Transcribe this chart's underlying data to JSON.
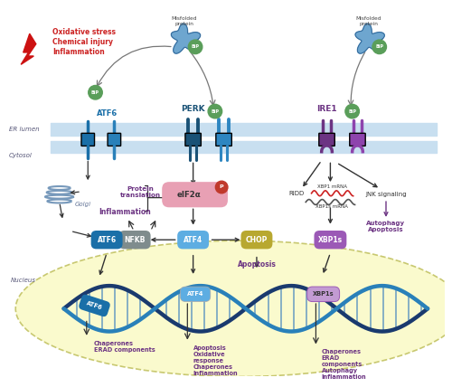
{
  "background_color": "#ffffff",
  "er_membrane_color": "#b8d4e8",
  "cytosol_label": "Cytosol",
  "er_lumen_label": "ER lumen",
  "nucleus_label": "Nucleus",
  "nucleus_color": "#fafacd",
  "nucleus_border": "#c8c870",
  "stress_text": [
    "Oxidative stress",
    "Chemical injury",
    "Inflammation"
  ],
  "stress_color": "#cc2222",
  "perk_label": "PERK",
  "ire1_label": "IRE1",
  "atf6_label": "ATF6",
  "bip_color": "#5a9e5a",
  "perk_color": "#1a5276",
  "ire1_color": "#6c3483",
  "atf6_color": "#1a6fa8",
  "eif2a_color": "#e8a0b4",
  "eif2a_label": "eIF2α",
  "phospho_color": "#c0392b",
  "atf4_color": "#5dade2",
  "nfkb_color": "#7f8c8d",
  "chop_color": "#b8a830",
  "xbp1s_color": "#9b59b6",
  "output_color": "#6c3483",
  "dna_color1": "#1a3a6e",
  "dna_color2": "#2980b9",
  "arrow_color": "#333333"
}
